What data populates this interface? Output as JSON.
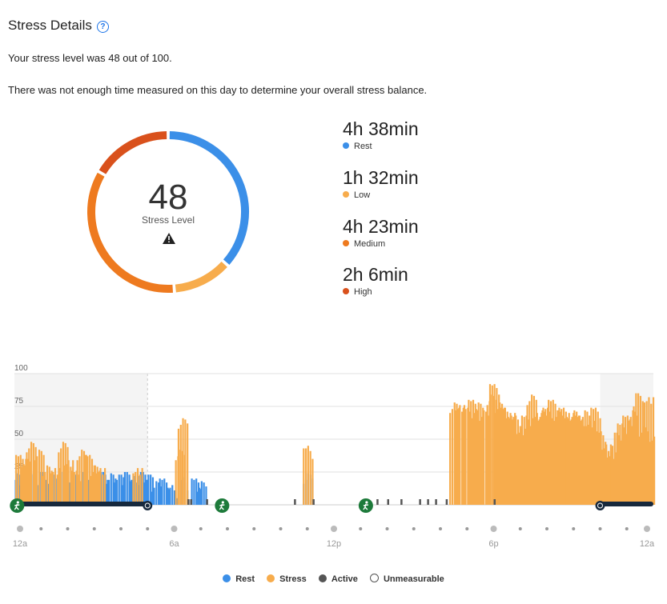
{
  "header": {
    "title": "Stress Details",
    "help_icon": "question-circle-icon"
  },
  "summary": {
    "level_text": "Your stress level was 48 out of 100.",
    "balance_text": "There was not enough time measured on this day to determine your overall stress balance."
  },
  "gauge": {
    "value": "48",
    "label": "Stress Level",
    "warning_icon": "warning-triangle-icon"
  },
  "breakdown": [
    {
      "duration": "4h 38min",
      "label": "Rest",
      "color": "#3b8fe8",
      "minutes": 278
    },
    {
      "duration": "1h 32min",
      "label": "Low",
      "color": "#f7ac4c",
      "minutes": 92
    },
    {
      "duration": "4h 23min",
      "label": "Medium",
      "color": "#ee7a1f",
      "minutes": 263
    },
    {
      "duration": "2h 6min",
      "label": "High",
      "color": "#d9511c",
      "minutes": 126
    }
  ],
  "chart_data": {
    "type": "bar",
    "ylim": [
      0,
      100
    ],
    "yticks": [
      "100",
      "75",
      "50",
      "25"
    ],
    "xticks": [
      "12a",
      "6a",
      "12p",
      "6p",
      "12a"
    ],
    "x_range_hours": [
      0,
      24
    ],
    "sleep_windows_hours": [
      [
        0,
        5
      ],
      [
        22,
        24
      ]
    ],
    "series": [
      {
        "name": "Rest",
        "color": "#3b8fe8",
        "points": [
          [
            0.1,
            24
          ],
          [
            0.3,
            25
          ],
          [
            0.6,
            24
          ],
          [
            1.0,
            25
          ],
          [
            1.4,
            24
          ],
          [
            1.8,
            25
          ],
          [
            2.2,
            23
          ],
          [
            2.6,
            25
          ],
          [
            3.0,
            24
          ],
          [
            3.3,
            25
          ],
          [
            3.6,
            24
          ],
          [
            3.9,
            23
          ],
          [
            4.2,
            25
          ],
          [
            4.5,
            22
          ],
          [
            4.8,
            25
          ],
          [
            5.0,
            23
          ],
          [
            5.3,
            18
          ],
          [
            5.6,
            20
          ],
          [
            5.9,
            15
          ],
          [
            6.3,
            21
          ],
          [
            6.8,
            20
          ],
          [
            7.0,
            18
          ],
          [
            11.0,
            24
          ]
        ]
      },
      {
        "name": "Stress",
        "color": "#f7ac4c",
        "points": [
          [
            0.2,
            38
          ],
          [
            0.4,
            35
          ],
          [
            0.6,
            48
          ],
          [
            0.9,
            42
          ],
          [
            1.2,
            30
          ],
          [
            1.5,
            28
          ],
          [
            1.8,
            48
          ],
          [
            2.0,
            34
          ],
          [
            2.3,
            26
          ],
          [
            2.5,
            42
          ],
          [
            2.8,
            38
          ],
          [
            3.0,
            30
          ],
          [
            3.2,
            28
          ],
          [
            4.6,
            28
          ],
          [
            6.3,
            66
          ],
          [
            6.2,
            42
          ],
          [
            11.0,
            45
          ],
          [
            16.5,
            78
          ],
          [
            16.7,
            76
          ],
          [
            17.0,
            74
          ],
          [
            17.2,
            80
          ],
          [
            17.4,
            78
          ],
          [
            17.6,
            72
          ],
          [
            17.9,
            84
          ],
          [
            18.0,
            92
          ],
          [
            18.2,
            78
          ],
          [
            18.4,
            74
          ],
          [
            18.6,
            70
          ],
          [
            18.8,
            68
          ],
          [
            19.0,
            58
          ],
          [
            19.2,
            68
          ],
          [
            19.4,
            84
          ],
          [
            19.6,
            70
          ],
          [
            19.8,
            72
          ],
          [
            20.0,
            74
          ],
          [
            20.2,
            80
          ],
          [
            20.4,
            72
          ],
          [
            20.6,
            74
          ],
          [
            20.8,
            70
          ],
          [
            21.0,
            72
          ],
          [
            21.2,
            68
          ],
          [
            21.4,
            72
          ],
          [
            21.6,
            64
          ],
          [
            21.8,
            74
          ],
          [
            22.0,
            56
          ],
          [
            22.2,
            46
          ],
          [
            22.4,
            40
          ],
          [
            22.6,
            55
          ],
          [
            22.8,
            62
          ],
          [
            23.0,
            68
          ],
          [
            23.2,
            72
          ],
          [
            23.4,
            85
          ],
          [
            23.6,
            60
          ],
          [
            23.8,
            82
          ],
          [
            24.0,
            52
          ]
        ]
      }
    ],
    "active_ticks_hours": [
      6.5,
      6.6,
      7.2,
      10.5,
      11.2,
      13.2,
      13.6,
      14.0,
      14.5,
      15.2,
      15.5,
      15.8,
      16.2,
      18.0
    ],
    "events": [
      {
        "hour": 0.1,
        "icon": "walking-icon"
      },
      {
        "hour": 5.0,
        "icon": "alarm-clock-icon"
      },
      {
        "hour": 7.8,
        "icon": "walking-icon"
      },
      {
        "hour": 13.2,
        "icon": "running-icon"
      },
      {
        "hour": 22.0,
        "icon": "sleep-icon"
      }
    ]
  },
  "legend": [
    {
      "label": "Rest",
      "color": "#3b8fe8"
    },
    {
      "label": "Stress",
      "color": "#f7ac4c"
    },
    {
      "label": "Active",
      "color": "#555555"
    },
    {
      "label": "Unmeasurable",
      "color": "#ffffff"
    }
  ]
}
